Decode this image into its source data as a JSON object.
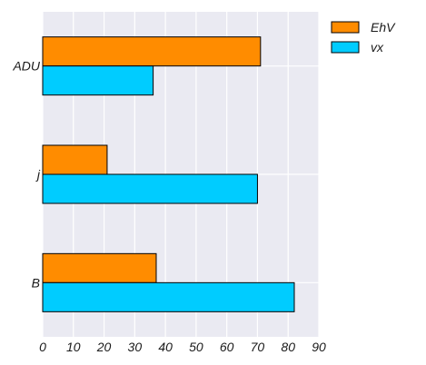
{
  "chart_data": {
    "type": "bar",
    "orientation": "horizontal",
    "categories": [
      "ADU",
      "j",
      "B"
    ],
    "series": [
      {
        "name": "EhV",
        "color": "#ff8c00",
        "values": [
          71,
          21,
          37
        ]
      },
      {
        "name": "vx",
        "color": "#00ccff",
        "values": [
          36,
          70,
          82
        ]
      }
    ],
    "xticks": [
      0,
      10,
      20,
      30,
      40,
      50,
      60,
      70,
      80,
      90
    ],
    "xlim": [
      0,
      90
    ],
    "grid": true,
    "legend_position": "top-right",
    "background": "#eaeaf2"
  }
}
